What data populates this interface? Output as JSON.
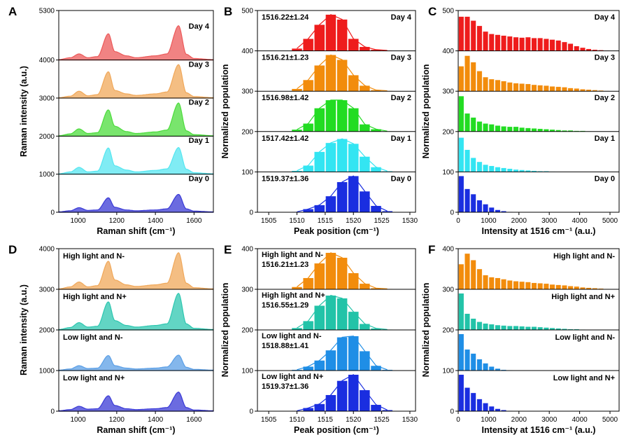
{
  "chart_data": [
    {
      "panel": "A",
      "type": "area",
      "xlabel": "Raman shift (cm⁻¹)",
      "ylabel": "Raman intensity (a.u.)",
      "xlim": [
        900,
        1700
      ],
      "xticks": [
        "1000",
        "1200",
        "1400",
        "1600"
      ],
      "ylim": [
        0,
        5300
      ],
      "yticks": [
        "0",
        "1000",
        "2000",
        "3000",
        "4000",
        "5300"
      ],
      "series": [
        {
          "name": "Day 0",
          "color": "#3a3ad6",
          "offset": 0,
          "x": [
            900,
            960,
            1005,
            1050,
            1100,
            1157,
            1190,
            1250,
            1300,
            1400,
            1460,
            1520,
            1560,
            1600,
            1700
          ],
          "y": [
            10,
            40,
            120,
            50,
            60,
            380,
            130,
            60,
            40,
            60,
            90,
            470,
            90,
            30,
            10
          ]
        },
        {
          "name": "Day 1",
          "color": "#55e6f0",
          "offset": 1000,
          "x": [
            900,
            960,
            1005,
            1050,
            1100,
            1157,
            1190,
            1250,
            1300,
            1400,
            1460,
            1520,
            1560,
            1600,
            1700
          ],
          "y": [
            10,
            60,
            180,
            60,
            80,
            690,
            220,
            110,
            60,
            100,
            140,
            700,
            130,
            40,
            10
          ]
        },
        {
          "name": "Day 2",
          "color": "#4cdc3c",
          "offset": 2000,
          "x": [
            900,
            960,
            1005,
            1050,
            1100,
            1157,
            1190,
            1250,
            1300,
            1400,
            1460,
            1520,
            1560,
            1600,
            1700
          ],
          "y": [
            10,
            60,
            190,
            70,
            90,
            690,
            260,
            120,
            70,
            110,
            160,
            870,
            140,
            40,
            10
          ]
        },
        {
          "name": "Day 3",
          "color": "#f0a85a",
          "offset": 3000,
          "x": [
            900,
            960,
            1005,
            1050,
            1100,
            1157,
            1190,
            1250,
            1300,
            1400,
            1460,
            1520,
            1560,
            1600,
            1700
          ],
          "y": [
            10,
            50,
            180,
            60,
            90,
            690,
            200,
            110,
            70,
            110,
            160,
            880,
            140,
            40,
            10
          ]
        },
        {
          "name": "Day 4",
          "color": "#ec5a5a",
          "offset": 4000,
          "x": [
            900,
            960,
            1005,
            1050,
            1100,
            1157,
            1190,
            1250,
            1300,
            1400,
            1460,
            1520,
            1560,
            1600,
            1700
          ],
          "y": [
            10,
            60,
            160,
            60,
            90,
            690,
            220,
            110,
            60,
            110,
            160,
            900,
            150,
            40,
            10
          ]
        }
      ]
    },
    {
      "panel": "B",
      "type": "bar",
      "xlabel": "Peak position (cm⁻¹)",
      "ylabel": "Normalized population",
      "xlim": [
        1503,
        1531
      ],
      "xticks": [
        "1505",
        "1510",
        "1515",
        "1520",
        "1525",
        "1530"
      ],
      "ylim": [
        0,
        500
      ],
      "yticks": [
        "0",
        "100",
        "200",
        "300",
        "400",
        "500"
      ],
      "bins": [
        1510,
        1512,
        1514,
        1516,
        1518,
        1520,
        1522,
        1524,
        1526
      ],
      "series": [
        {
          "name": "Day 0",
          "stat": "1519.37±1.36",
          "color": "#1a2ee0",
          "offset": 0,
          "values": [
            1,
            8,
            18,
            40,
            75,
            90,
            52,
            16,
            3
          ]
        },
        {
          "name": "Day 1",
          "stat": "1517.42±1.42",
          "color": "#33e5f2",
          "offset": 100,
          "values": [
            3,
            16,
            50,
            72,
            82,
            70,
            38,
            12,
            2
          ]
        },
        {
          "name": "Day 2",
          "stat": "1516.98±1.42",
          "color": "#22dc22",
          "offset": 200,
          "values": [
            5,
            20,
            58,
            78,
            78,
            58,
            18,
            6,
            1
          ]
        },
        {
          "name": "Day 3",
          "stat": "1516.21±1.23",
          "color": "#f28c0c",
          "offset": 300,
          "values": [
            6,
            28,
            64,
            90,
            78,
            40,
            14,
            3,
            1
          ]
        },
        {
          "name": "Day 4",
          "stat": "1516.22±1.24",
          "color": "#ee1c1c",
          "offset": 400,
          "values": [
            6,
            30,
            65,
            90,
            78,
            30,
            10,
            3,
            1
          ]
        }
      ]
    },
    {
      "panel": "C",
      "type": "bar",
      "xlabel": "Intensity at 1516 cm⁻¹ (a.u.)",
      "ylabel": "Normalized population",
      "xlim": [
        0,
        5300
      ],
      "xticks": [
        "0",
        "1000",
        "2000",
        "3000",
        "4000",
        "5000"
      ],
      "ylim": [
        0,
        500
      ],
      "yticks": [
        "0",
        "100",
        "200",
        "300",
        "400",
        "500"
      ],
      "bin_width": 200,
      "series": [
        {
          "name": "Day 0",
          "color": "#1a2ee0",
          "offset": 0,
          "values": [
            90,
            58,
            45,
            30,
            20,
            12,
            6,
            3,
            1
          ]
        },
        {
          "name": "Day 1",
          "color": "#33e5f2",
          "offset": 100,
          "values": [
            85,
            55,
            35,
            25,
            18,
            15,
            12,
            10,
            8,
            6,
            5,
            4,
            3,
            2,
            2,
            1
          ]
        },
        {
          "name": "Day 2",
          "color": "#22dc22",
          "offset": 200,
          "values": [
            88,
            45,
            35,
            25,
            20,
            18,
            15,
            13,
            12,
            12,
            10,
            9,
            8,
            7,
            6,
            5,
            4,
            3,
            3,
            2,
            2,
            1
          ]
        },
        {
          "name": "Day 3",
          "color": "#f28c0c",
          "offset": 300,
          "values": [
            62,
            88,
            72,
            50,
            35,
            30,
            28,
            25,
            22,
            20,
            19,
            18,
            16,
            15,
            14,
            12,
            11,
            10,
            8,
            7,
            5,
            4,
            3,
            2,
            1
          ]
        },
        {
          "name": "Day 4",
          "color": "#ee1c1c",
          "offset": 400,
          "values": [
            85,
            85,
            75,
            62,
            48,
            42,
            40,
            38,
            36,
            34,
            33,
            34,
            32,
            32,
            30,
            28,
            26,
            22,
            18,
            12,
            8,
            5,
            3,
            2,
            1
          ]
        }
      ]
    },
    {
      "panel": "D",
      "type": "area",
      "xlabel": "Raman shift (cm⁻¹)",
      "ylabel": "Raman intensity (a.u.)",
      "xlim": [
        900,
        1700
      ],
      "xticks": [
        "1000",
        "1200",
        "1400",
        "1600"
      ],
      "ylim": [
        0,
        4000
      ],
      "yticks": [
        "0",
        "1000",
        "2000",
        "3000",
        "4000"
      ],
      "series": [
        {
          "name": "Low light and N+",
          "color": "#3a3ad6",
          "offset": 0,
          "x": [
            900,
            960,
            1005,
            1050,
            1100,
            1157,
            1190,
            1250,
            1300,
            1400,
            1460,
            1520,
            1560,
            1600,
            1700
          ],
          "y": [
            10,
            40,
            120,
            50,
            60,
            380,
            140,
            60,
            40,
            60,
            90,
            470,
            90,
            30,
            10
          ]
        },
        {
          "name": "Low light and N-",
          "color": "#5b9fe6",
          "offset": 1000,
          "x": [
            900,
            960,
            1005,
            1050,
            1100,
            1157,
            1190,
            1250,
            1300,
            1400,
            1460,
            1520,
            1560,
            1600,
            1700
          ],
          "y": [
            10,
            40,
            120,
            50,
            60,
            370,
            120,
            60,
            40,
            60,
            90,
            380,
            80,
            30,
            10
          ]
        },
        {
          "name": "High light and N+",
          "color": "#2dc7b0",
          "offset": 2000,
          "x": [
            900,
            960,
            1005,
            1050,
            1100,
            1157,
            1190,
            1250,
            1300,
            1400,
            1460,
            1520,
            1560,
            1600,
            1700
          ],
          "y": [
            10,
            60,
            180,
            70,
            90,
            690,
            230,
            110,
            70,
            110,
            150,
            900,
            150,
            40,
            10
          ]
        },
        {
          "name": "High light and N-",
          "color": "#f0a85a",
          "offset": 3000,
          "x": [
            900,
            960,
            1005,
            1050,
            1100,
            1157,
            1190,
            1250,
            1300,
            1400,
            1460,
            1520,
            1560,
            1600,
            1700
          ],
          "y": [
            10,
            60,
            180,
            60,
            90,
            690,
            230,
            110,
            70,
            110,
            150,
            900,
            150,
            40,
            10
          ]
        }
      ]
    },
    {
      "panel": "E",
      "type": "bar",
      "xlabel": "Peak position (cm⁻¹)",
      "ylabel": "Normalized population",
      "xlim": [
        1503,
        1531
      ],
      "xticks": [
        "1505",
        "1510",
        "1515",
        "1520",
        "1525",
        "1530"
      ],
      "ylim": [
        0,
        400
      ],
      "yticks": [
        "0",
        "100",
        "200",
        "300",
        "400"
      ],
      "bins": [
        1510,
        1512,
        1514,
        1516,
        1518,
        1520,
        1522,
        1524,
        1526
      ],
      "series": [
        {
          "name": "Low light and N+",
          "stat": "1519.37±1.36",
          "color": "#1a2ee0",
          "offset": 0,
          "values": [
            1,
            8,
            18,
            40,
            75,
            90,
            52,
            16,
            3
          ]
        },
        {
          "name": "Low light and N-",
          "stat": "1518.88±1.41",
          "color": "#1f8ee6",
          "offset": 100,
          "values": [
            2,
            10,
            25,
            50,
            82,
            85,
            48,
            12,
            2
          ]
        },
        {
          "name": "High light and N+",
          "stat": "1516.55±1.29",
          "color": "#22c3a8",
          "offset": 200,
          "values": [
            5,
            22,
            60,
            85,
            78,
            45,
            15,
            4,
            1
          ]
        },
        {
          "name": "High light and N-",
          "stat": "1516.21±1.23",
          "color": "#f28c0c",
          "offset": 300,
          "values": [
            6,
            28,
            64,
            90,
            78,
            40,
            14,
            3,
            1
          ]
        }
      ]
    },
    {
      "panel": "F",
      "type": "bar",
      "xlabel": "Intensity at 1516 cm⁻¹ (a.u.)",
      "ylabel": "Normalized population",
      "xlim": [
        0,
        5300
      ],
      "xticks": [
        "0",
        "1000",
        "2000",
        "3000",
        "4000",
        "5000"
      ],
      "ylim": [
        0,
        400
      ],
      "yticks": [
        "0",
        "100",
        "200",
        "300",
        "400"
      ],
      "bin_width": 200,
      "series": [
        {
          "name": "Low light and N+",
          "color": "#1a2ee0",
          "offset": 0,
          "values": [
            90,
            58,
            45,
            30,
            20,
            12,
            6,
            3,
            1
          ]
        },
        {
          "name": "Low light and N-",
          "color": "#1f8ee6",
          "offset": 100,
          "values": [
            90,
            52,
            42,
            28,
            18,
            10,
            5,
            2,
            1
          ]
        },
        {
          "name": "High light and N+",
          "color": "#22c3a8",
          "offset": 200,
          "values": [
            90,
            40,
            28,
            20,
            16,
            14,
            12,
            11,
            10,
            10,
            9,
            8,
            8,
            7,
            6,
            5,
            4,
            3,
            2,
            2,
            1
          ]
        },
        {
          "name": "High light and N-",
          "color": "#f28c0c",
          "offset": 300,
          "values": [
            62,
            88,
            72,
            50,
            35,
            30,
            28,
            25,
            22,
            20,
            19,
            18,
            16,
            15,
            14,
            12,
            11,
            10,
            8,
            7,
            5,
            4,
            3,
            2,
            1
          ]
        }
      ]
    }
  ]
}
